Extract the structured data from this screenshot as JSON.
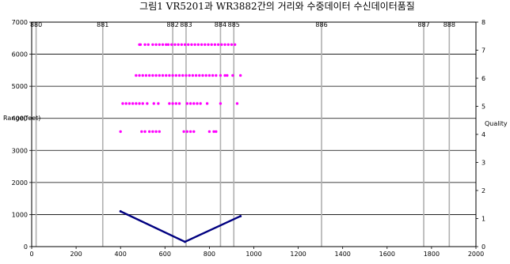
{
  "chart_data": {
    "type": "scatter",
    "title": "그림1 VR5201과 WR3882간의 거리와 수중데이터 수신데이터품질",
    "xlabel": "",
    "ylabel_left": "Range(feet)",
    "ylabel_right": "Quality",
    "xlim": [
      0,
      2000
    ],
    "ylim_left": [
      0,
      7000
    ],
    "ylim_right": [
      0,
      8
    ],
    "x_ticks": [
      "0",
      "200",
      "400",
      "600",
      "800",
      "1000",
      "1200",
      "1400",
      "1600",
      "1800",
      "2000"
    ],
    "y_left_ticks": [
      "0",
      "1000",
      "2000",
      "3000",
      "4000",
      "5000",
      "6000",
      "7000"
    ],
    "y_right_ticks": [
      "0",
      "1",
      "2",
      "3",
      "4",
      "5",
      "6",
      "7",
      "8"
    ],
    "grid_horizontal": true,
    "marker_lines": [
      {
        "label": "880",
        "x": 20
      },
      {
        "label": "881",
        "x": 320
      },
      {
        "label": "882",
        "x": 635
      },
      {
        "label": "883",
        "x": 695
      },
      {
        "label": "884",
        "x": 850
      },
      {
        "label": "885",
        "x": 910
      },
      {
        "label": "886",
        "x": 1305
      },
      {
        "label": "887",
        "x": 1765
      },
      {
        "label": "888",
        "x": 1880
      }
    ],
    "series": [
      {
        "axis": "left",
        "color": "#000080",
        "style": "dense-line",
        "values": [
          [
            400,
            1100
          ],
          [
            690,
            150
          ],
          [
            940,
            950
          ]
        ]
      },
      {
        "axis": "right",
        "color": "#ff00ff",
        "style": "dots",
        "values": [
          [
            485,
            7.2
          ],
          [
            490,
            7.2
          ],
          [
            510,
            7.2
          ],
          [
            525,
            7.2
          ],
          [
            545,
            7.2
          ],
          [
            560,
            7.2
          ],
          [
            575,
            7.2
          ],
          [
            590,
            7.2
          ],
          [
            605,
            7.2
          ],
          [
            615,
            7.2
          ],
          [
            630,
            7.2
          ],
          [
            645,
            7.2
          ],
          [
            660,
            7.2
          ],
          [
            675,
            7.2
          ],
          [
            690,
            7.2
          ],
          [
            705,
            7.2
          ],
          [
            720,
            7.2
          ],
          [
            735,
            7.2
          ],
          [
            750,
            7.2
          ],
          [
            765,
            7.2
          ],
          [
            780,
            7.2
          ],
          [
            795,
            7.2
          ],
          [
            810,
            7.2
          ],
          [
            825,
            7.2
          ],
          [
            840,
            7.2
          ],
          [
            855,
            7.2
          ],
          [
            870,
            7.2
          ],
          [
            885,
            7.2
          ],
          [
            900,
            7.2
          ],
          [
            915,
            7.2
          ],
          [
            470,
            6.1
          ],
          [
            485,
            6.1
          ],
          [
            500,
            6.1
          ],
          [
            515,
            6.1
          ],
          [
            530,
            6.1
          ],
          [
            545,
            6.1
          ],
          [
            560,
            6.1
          ],
          [
            575,
            6.1
          ],
          [
            590,
            6.1
          ],
          [
            605,
            6.1
          ],
          [
            620,
            6.1
          ],
          [
            635,
            6.1
          ],
          [
            650,
            6.1
          ],
          [
            665,
            6.1
          ],
          [
            680,
            6.1
          ],
          [
            695,
            6.1
          ],
          [
            710,
            6.1
          ],
          [
            725,
            6.1
          ],
          [
            740,
            6.1
          ],
          [
            755,
            6.1
          ],
          [
            770,
            6.1
          ],
          [
            785,
            6.1
          ],
          [
            800,
            6.1
          ],
          [
            815,
            6.1
          ],
          [
            830,
            6.1
          ],
          [
            850,
            6.1
          ],
          [
            870,
            6.1
          ],
          [
            880,
            6.1
          ],
          [
            905,
            6.1
          ],
          [
            940,
            6.1
          ],
          [
            410,
            5.1
          ],
          [
            425,
            5.1
          ],
          [
            440,
            5.1
          ],
          [
            455,
            5.1
          ],
          [
            470,
            5.1
          ],
          [
            485,
            5.1
          ],
          [
            500,
            5.1
          ],
          [
            520,
            5.1
          ],
          [
            550,
            5.1
          ],
          [
            570,
            5.1
          ],
          [
            620,
            5.1
          ],
          [
            635,
            5.1
          ],
          [
            650,
            5.1
          ],
          [
            665,
            5.1
          ],
          [
            700,
            5.1
          ],
          [
            715,
            5.1
          ],
          [
            730,
            5.1
          ],
          [
            745,
            5.1
          ],
          [
            760,
            5.1
          ],
          [
            790,
            5.1
          ],
          [
            850,
            5.1
          ],
          [
            925,
            5.1
          ],
          [
            400,
            4.1
          ],
          [
            495,
            4.1
          ],
          [
            510,
            4.1
          ],
          [
            530,
            4.1
          ],
          [
            545,
            4.1
          ],
          [
            560,
            4.1
          ],
          [
            575,
            4.1
          ],
          [
            685,
            4.1
          ],
          [
            700,
            4.1
          ],
          [
            715,
            4.1
          ],
          [
            730,
            4.1
          ],
          [
            800,
            4.1
          ],
          [
            820,
            4.1
          ],
          [
            830,
            4.1
          ]
        ]
      }
    ]
  }
}
